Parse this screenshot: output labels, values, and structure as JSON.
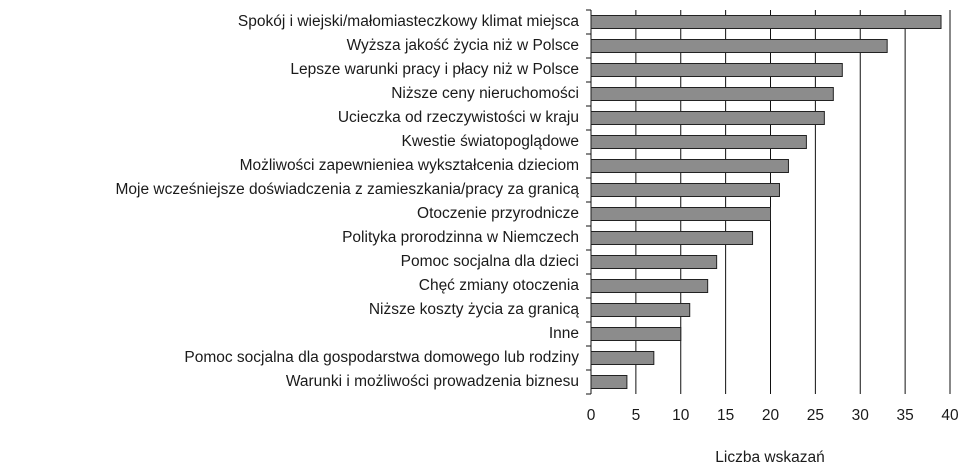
{
  "chart_data": {
    "type": "bar",
    "orientation": "horizontal",
    "x_label": "Liczba wskazań",
    "categories": [
      "Spokój i wiejski/małomiasteczkowy klimat miejsca",
      "Wyższa jakość życia niż w Polsce",
      "Lepsze warunki pracy i płacy niż w Polsce",
      "Niższe ceny nieruchomości",
      "Ucieczka od rzeczywistości w kraju",
      "Kwestie światopoglądowe",
      "Możliwości zapewnieniea wykształcenia dzieciom",
      "Moje wcześniejsze doświadczenia z zamieszkania/pracy za granicą",
      "Otoczenie przyrodnicze",
      "Polityka prorodzinna w Niemczech",
      "Pomoc socjalna dla dzieci",
      "Chęć zmiany otoczenia",
      "Niższe koszty życia za granicą",
      "Inne",
      "Pomoc socjalna dla gospodarstwa domowego lub rodziny",
      "Warunki i możliwości prowadzenia biznesu"
    ],
    "values": [
      39,
      33,
      28,
      27,
      26,
      24,
      22,
      21,
      20,
      18,
      14,
      13,
      11,
      10,
      7,
      4
    ],
    "color": "#8c8c8c",
    "xlim": [
      0,
      40
    ],
    "xticks": [
      0,
      5,
      10,
      15,
      20,
      25,
      30,
      35,
      40
    ],
    "grid": true
  }
}
